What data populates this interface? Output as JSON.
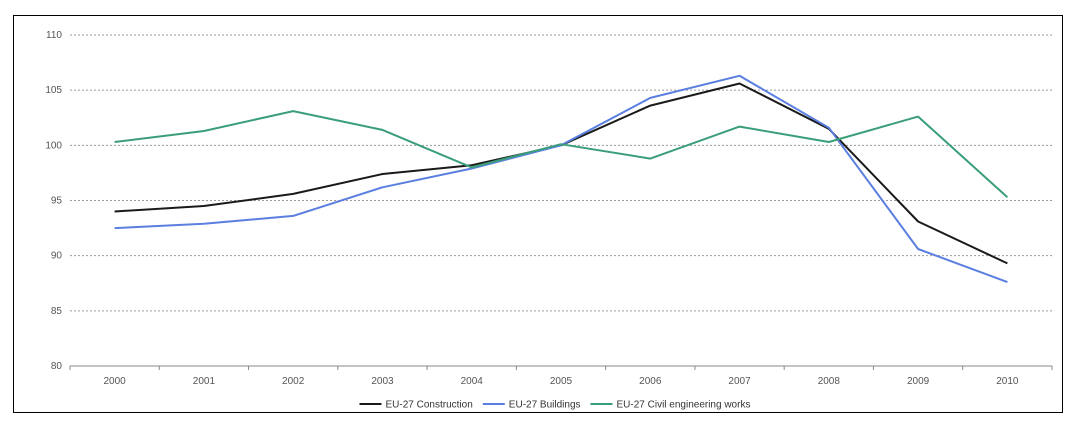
{
  "chart_data": {
    "type": "line",
    "title": "",
    "xlabel": "",
    "ylabel": "",
    "categories": [
      "2000",
      "2001",
      "2002",
      "2003",
      "2004",
      "2005",
      "2006",
      "2007",
      "2008",
      "2009",
      "2010"
    ],
    "y_ticks": [
      "80",
      "85",
      "90",
      "95",
      "100",
      "105",
      "110"
    ],
    "ylim": [
      80,
      110
    ],
    "grid": true,
    "legend_position": "bottom",
    "series": [
      {
        "name": "EU-27 Construction",
        "color": "#1a1a1a",
        "values": [
          94.0,
          94.5,
          95.6,
          97.4,
          98.2,
          100.0,
          103.6,
          105.6,
          101.5,
          93.1,
          89.3
        ]
      },
      {
        "name": "EU-27 Buildings",
        "color": "#5b7fe0",
        "values": [
          92.5,
          92.9,
          93.6,
          96.2,
          97.9,
          100.0,
          104.3,
          106.3,
          101.6,
          90.6,
          87.6
        ]
      },
      {
        "name": "EU-27 Civil engineering works",
        "color": "#3a9e78",
        "values": [
          100.3,
          101.3,
          103.1,
          101.4,
          98.0,
          100.1,
          98.8,
          101.7,
          100.3,
          102.6,
          95.3
        ]
      }
    ]
  }
}
